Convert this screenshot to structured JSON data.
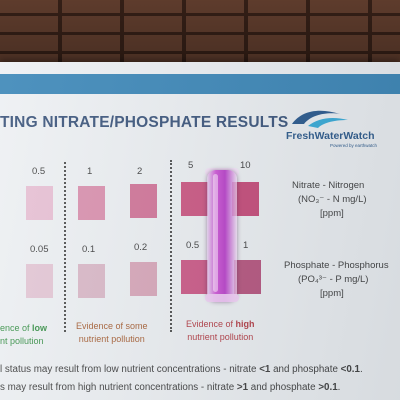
{
  "title": "TING NITRATE/PHOSPHATE RESULTS",
  "logo": {
    "name": "FreshWaterWatch",
    "sub": "Powered by earthwatch"
  },
  "nitrate": {
    "values": [
      "0.5",
      "1",
      "2",
      "5",
      "10"
    ],
    "label_line1": "Nitrate - Nitrogen",
    "label_line2": "(NO₃⁻ - N mg/L)",
    "label_line3": "[ppm]",
    "colors": [
      "#e6bcd1",
      "#d88aa9",
      "#cf6c92",
      "#c94c7a",
      "#c23f70"
    ]
  },
  "phosphate": {
    "values": [
      "0.05",
      "0.1",
      "0.2",
      "0.5",
      "1"
    ],
    "label_line1": "Phosphate - Phosphorus",
    "label_line2": "(PO₄³⁻ - P mg/L)",
    "label_line3": "[ppm]",
    "colors": [
      "#e2c3d2",
      "#d8b4c4",
      "#d6a1b5",
      "#c94f7f",
      "#b24a76"
    ]
  },
  "evidence": {
    "low_line1_a": "ence of ",
    "low_line1_b": "low",
    "low_line2": "nt pollution",
    "some_line1": "Evidence of some",
    "some_line2": "nutrient pollution",
    "high_line1_a": "Evidence of ",
    "high_line1_b": "high",
    "high_line2": "nutrient pollution",
    "colors": {
      "low": "#2e8b3e",
      "some": "#a2572a",
      "high": "#b0323a"
    }
  },
  "footer": {
    "line1_a": "l status may result from low nutrient concentrations - nitrate ",
    "line1_b": "<1",
    "line1_c": " and phosphate ",
    "line1_d": "<0.1",
    "line1_e": ".",
    "line2_a": "s may result from high nutrient concentrations - nitrate ",
    "line2_b": ">1",
    "line2_c": " and phosphate ",
    "line2_d": ">0.1",
    "line2_e": "."
  }
}
